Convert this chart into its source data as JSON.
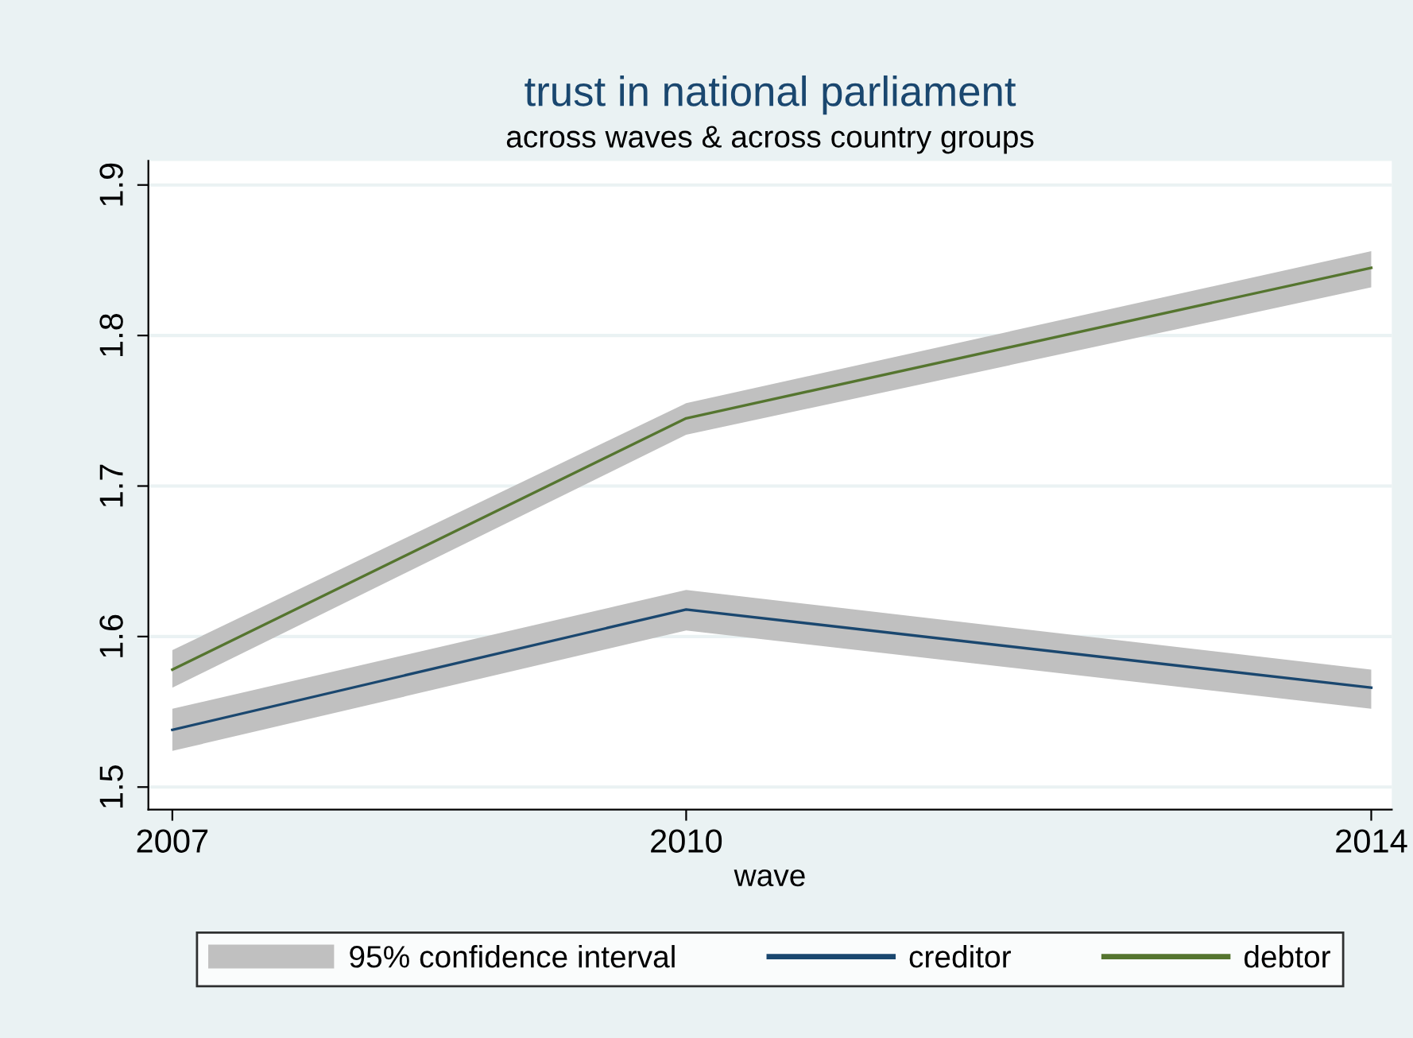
{
  "chart_data": {
    "type": "line",
    "title": "trust in national parliament",
    "subtitle": "across waves & across country groups",
    "xlabel": "wave",
    "x": [
      2007,
      2010,
      2014
    ],
    "series": [
      {
        "name": "creditor",
        "color": "#1a476f",
        "values": [
          1.538,
          1.618,
          1.566
        ],
        "lower": [
          1.524,
          1.604,
          1.552
        ],
        "upper": [
          1.552,
          1.631,
          1.578
        ]
      },
      {
        "name": "debtor",
        "color": "#55752f",
        "values": [
          1.578,
          1.745,
          1.845
        ],
        "lower": [
          1.566,
          1.734,
          1.832
        ],
        "upper": [
          1.591,
          1.755,
          1.856
        ]
      }
    ],
    "annotations": [
      "95% confidence interval"
    ],
    "xlim": [
      2006.86,
      2014.12
    ],
    "xticks": [
      2007,
      2010,
      2014
    ],
    "ylim": [
      1.485,
      1.916
    ],
    "yticks": [
      1.5,
      1.6,
      1.7,
      1.8,
      1.9
    ],
    "grid": "y",
    "legend": "bottom",
    "marker": "none",
    "line_style": "solid"
  }
}
